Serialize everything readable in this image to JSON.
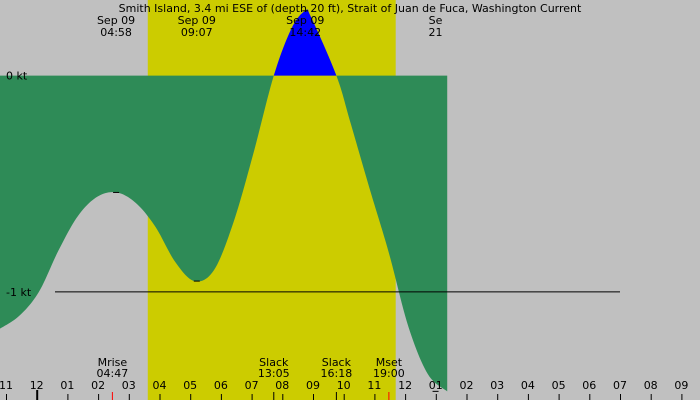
{
  "chart_data": {
    "type": "area",
    "title": "Smith Island, 3.4 mi ESE of (depth 20 ft), Strait of Juan de Fuca, Washington Current",
    "unit": "kt",
    "colors": {
      "night": "#c0c0c0",
      "day": "#cccc00",
      "flood": "#0000ff",
      "ebb": "#2e8b57",
      "moon_tick": "#ff0000"
    },
    "x_hours": [
      -1,
      35
    ],
    "y_range": [
      -1.5,
      0.35
    ],
    "y_ticks": [
      {
        "value": 0,
        "label": "0 kt"
      },
      {
        "value": -1,
        "label": "-1 kt"
      }
    ],
    "daylight": {
      "start": 6.6,
      "end": 19.35
    },
    "hour_ticks": [
      "11",
      "12",
      "01",
      "02",
      "03",
      "04",
      "05",
      "06",
      "07",
      "08",
      "09",
      "10",
      "11",
      "12",
      "01",
      "02",
      "03",
      "04",
      "05",
      "06",
      "07",
      "08",
      "09"
    ],
    "midnight_hour": 0,
    "extremes": [
      {
        "hour": 4.97,
        "value": -0.54,
        "date": "Sep 09",
        "time": "04:58"
      },
      {
        "hour": 9.12,
        "value": -0.95,
        "date": "Sep 09",
        "time": "09:07"
      },
      {
        "hour": 14.7,
        "value": 0.3,
        "date": "Sep 09",
        "time": "14:42"
      },
      {
        "hour": 21.4,
        "value": -1.46,
        "date": "Se",
        "time": "21"
      }
    ],
    "series": {
      "hours": [
        -1,
        0,
        1,
        2,
        3,
        4,
        5,
        6,
        7,
        8,
        9,
        10,
        11,
        12,
        13.08,
        14,
        14.7,
        15,
        16.3,
        17,
        18,
        19,
        20,
        21,
        22
      ],
      "values": [
        -1.17,
        -1.11,
        -1.0,
        -0.81,
        -0.65,
        -0.56,
        -0.54,
        -0.59,
        -0.7,
        -0.86,
        -0.95,
        -0.9,
        -0.68,
        -0.37,
        0.0,
        0.22,
        0.3,
        0.27,
        0.0,
        -0.21,
        -0.52,
        -0.82,
        -1.16,
        -1.38,
        -1.46
      ]
    },
    "events": [
      {
        "label": "Mrise",
        "time": "04:47",
        "hour": 4.78,
        "moon": true
      },
      {
        "label": "Slack",
        "time": "13:05",
        "hour": 13.08,
        "moon": false
      },
      {
        "label": "Slack",
        "time": "16:18",
        "hour": 16.3,
        "moon": false
      },
      {
        "label": "Mset",
        "time": "19:00",
        "hour": 19.0,
        "moon": true
      }
    ]
  }
}
